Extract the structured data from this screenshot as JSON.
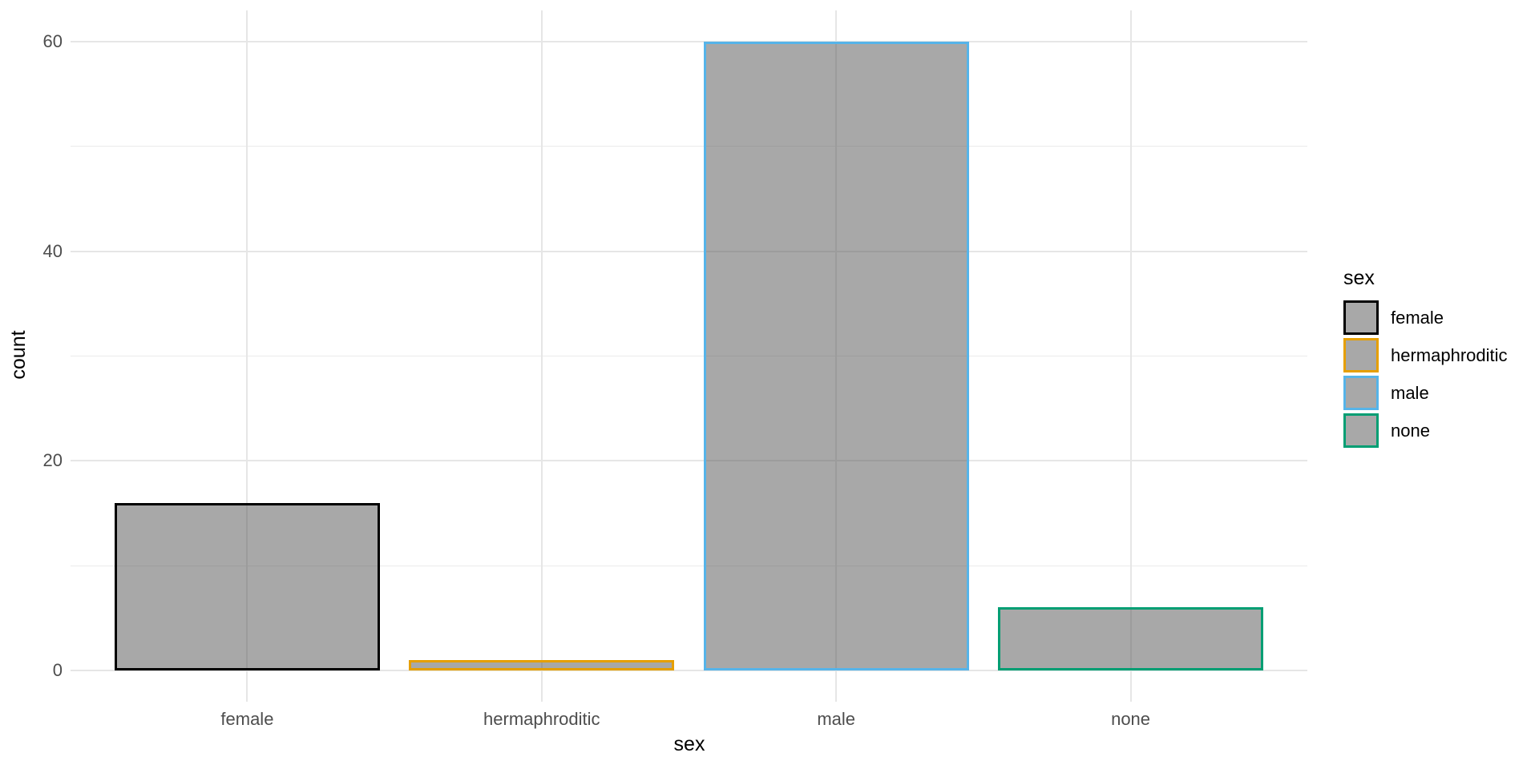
{
  "chart_data": {
    "type": "bar",
    "xlabel": "sex",
    "ylabel": "count",
    "categories": [
      "female",
      "hermaphroditic",
      "male",
      "none"
    ],
    "values": [
      16,
      1,
      60,
      6
    ],
    "ylim": [
      0,
      60
    ],
    "y_major_ticks": [
      0,
      20,
      40,
      60
    ],
    "y_minor_ticks": [
      10,
      30,
      50
    ],
    "grid": true,
    "bar_fill": "rgba(89,89,89,0.52)",
    "bar_stroke_colors": [
      "#000000",
      "#E69F00",
      "#56B4E9",
      "#009E73"
    ],
    "legend": {
      "position": "right",
      "title": "sex",
      "entries": [
        {
          "label": "female",
          "color": "#000000"
        },
        {
          "label": "hermaphroditic",
          "color": "#E69F00"
        },
        {
          "label": "male",
          "color": "#56B4E9"
        },
        {
          "label": "none",
          "color": "#009E73"
        }
      ]
    },
    "style": {
      "grid_major_color": "#E6E6E6",
      "grid_minor_color": "#EBEBEB",
      "tick_label_color": "#4D4D4D",
      "axis_title_color": "#000000",
      "background": "#FFFFFF"
    }
  }
}
